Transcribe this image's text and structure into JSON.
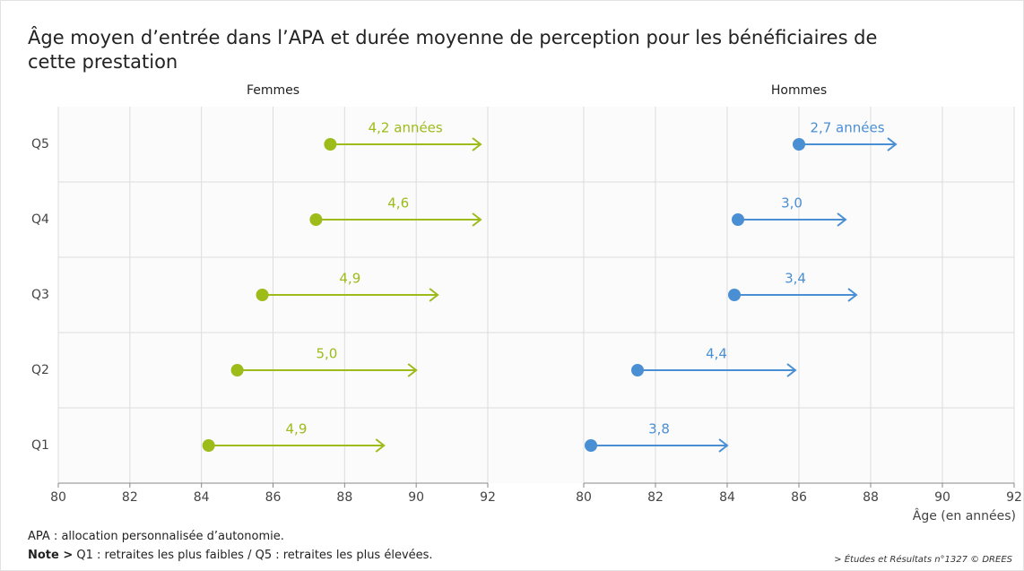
{
  "title": "Âge moyen d’entrée dans l’APA et durée moyenne de perception pour les bénéficiaires de cette prestation",
  "chart_data": [
    {
      "type": "arrow",
      "subtitle": "Femmes",
      "color": "#9dbb19",
      "categories": [
        "Q5",
        "Q4",
        "Q3",
        "Q2",
        "Q1"
      ],
      "values": [
        87.6,
        87.2,
        85.7,
        85.0,
        84.2
      ],
      "durations": [
        4.2,
        4.6,
        4.9,
        5.0,
        4.9
      ],
      "value_labels": [
        "4,2 années",
        "4,6",
        "4,9",
        "5,0",
        "4,9"
      ],
      "xlim": [
        80,
        92
      ],
      "xticks": [
        80,
        82,
        84,
        86,
        88,
        90,
        92
      ],
      "grid": true
    },
    {
      "type": "arrow",
      "subtitle": "Hommes",
      "color": "#4a8fd4",
      "values": [
        86.0,
        84.3,
        84.2,
        81.5,
        80.2
      ],
      "durations": [
        2.7,
        3.0,
        3.4,
        4.4,
        3.8
      ],
      "value_labels": [
        "2,7 années",
        "3,0",
        "3,4",
        "4,4",
        "3,8"
      ],
      "xlim": [
        80,
        92
      ],
      "xticks": [
        80,
        82,
        84,
        86,
        88,
        90,
        92
      ],
      "grid": true,
      "x_label": "Âge (en années)"
    }
  ],
  "notes": {
    "apa": "APA : allocation personnalisée d’autonomie.",
    "note_label": "Note >",
    "note_text": "Q1 : retraites les plus faibles / Q5 : retraites les plus élevées.",
    "source": "> Études et Résultats n°1327 © DREES"
  }
}
